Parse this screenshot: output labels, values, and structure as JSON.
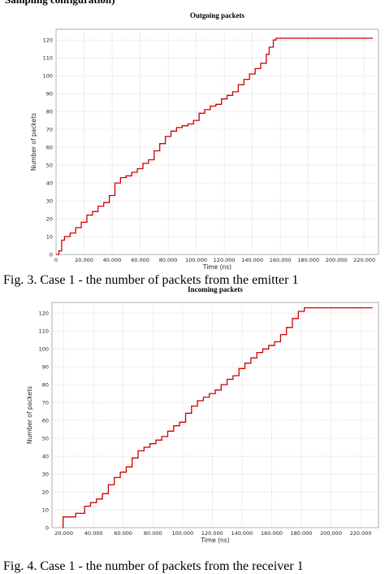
{
  "header_fragment": "Sampling configuration)",
  "captions": [
    "Fig. 3.   Case 1 - the number of packets from the emitter 1",
    "Fig. 4.   Case 1 - the number of packets from the receiver 1"
  ],
  "colors": {
    "line": "#cc0000",
    "grid": "#c8c8c8",
    "frame": "#999999"
  },
  "chart_data": [
    {
      "type": "line",
      "title": "Outgoing packets",
      "xlabel": "Time (ns)",
      "ylabel": "Number of packets",
      "xlim": [
        0,
        230000
      ],
      "ylim": [
        0,
        126
      ],
      "xticks": [
        0,
        20000,
        40000,
        60000,
        80000,
        100000,
        120000,
        140000,
        160000,
        180000,
        200000,
        220000
      ],
      "xtick_labels": [
        "0",
        "20.000",
        "40.000",
        "60.000",
        "80.000",
        "100.000",
        "120.000",
        "140.000",
        "160.000",
        "180.000",
        "200.000",
        "220.000"
      ],
      "yticks": [
        0,
        10,
        20,
        30,
        40,
        50,
        60,
        70,
        80,
        90,
        100,
        110,
        120
      ],
      "grid": true,
      "step": true,
      "series": [
        {
          "x": [
            0,
            2000,
            4000,
            6000,
            10000,
            14000,
            18000,
            22000,
            26000,
            30000,
            34000,
            38000,
            42000,
            46000,
            50000,
            54000,
            58000,
            62000,
            66000,
            70000,
            74000,
            78000,
            82000,
            86000,
            90000,
            94000,
            98000,
            102000,
            106000,
            110000,
            114000,
            118000,
            122000,
            126000,
            130000,
            134000,
            138000,
            142000,
            146000,
            150000,
            152000,
            155000,
            157000,
            226000
          ],
          "y": [
            0,
            2,
            8,
            10,
            12,
            15,
            18,
            22,
            24,
            27,
            29,
            33,
            40,
            43,
            44,
            46,
            48,
            51,
            53,
            58,
            62,
            66,
            69,
            71,
            72,
            73,
            75,
            79,
            81,
            83,
            84,
            87,
            89,
            91,
            95,
            98,
            101,
            104,
            107,
            112,
            116,
            120,
            121,
            121
          ]
        }
      ]
    },
    {
      "type": "line",
      "title": "Incoming packets",
      "xlabel": "Time (ns)",
      "ylabel": "Number of packets",
      "xlim": [
        12000,
        232000
      ],
      "ylim": [
        0,
        126
      ],
      "xticks": [
        20000,
        40000,
        60000,
        80000,
        100000,
        120000,
        140000,
        160000,
        180000,
        200000,
        220000
      ],
      "xtick_labels": [
        "20.000",
        "40.000",
        "60.000",
        "80.000",
        "100.000",
        "120.000",
        "140.000",
        "160.000",
        "180.000",
        "200.000",
        "220.000"
      ],
      "yticks": [
        0,
        10,
        20,
        30,
        40,
        50,
        60,
        70,
        80,
        90,
        100,
        110,
        120
      ],
      "grid": true,
      "step": true,
      "series": [
        {
          "x": [
            19000,
            19500,
            28000,
            34000,
            38000,
            42000,
            46000,
            50000,
            54000,
            58000,
            62000,
            66000,
            70000,
            74000,
            78000,
            82000,
            86000,
            90000,
            94000,
            98000,
            102000,
            106000,
            110000,
            114000,
            118000,
            122000,
            126000,
            130000,
            134000,
            138000,
            142000,
            146000,
            150000,
            154000,
            158000,
            162000,
            166000,
            170000,
            174000,
            178000,
            182000,
            185000,
            228000
          ],
          "y": [
            0,
            6,
            8,
            12,
            14,
            16,
            19,
            24,
            28,
            31,
            34,
            39,
            43,
            45,
            47,
            49,
            51,
            54,
            57,
            59,
            64,
            68,
            71,
            73,
            75,
            77,
            80,
            83,
            85,
            89,
            92,
            95,
            98,
            100,
            102,
            104,
            108,
            112,
            117,
            121,
            123,
            123,
            123
          ]
        }
      ]
    }
  ]
}
